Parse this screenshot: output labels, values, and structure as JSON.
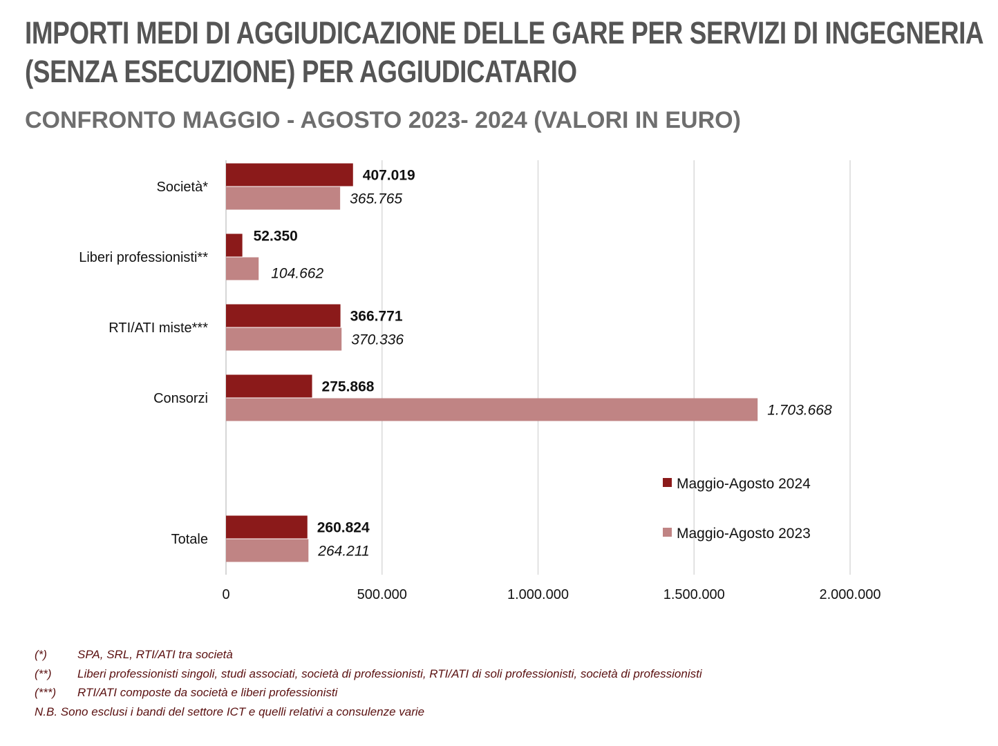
{
  "title_lines": [
    "IMPORTI MEDI DI AGGIUDICAZIONE DELLE GARE PER SERVIZI DI INGEGNERIA",
    "(SENZA ESECUZIONE) PER AGGIUDICATARIO"
  ],
  "subtitle": "CONFRONTO MAGGIO - AGOSTO 2023- 2024 (VALORI IN EURO)",
  "colors": {
    "series_2024": "#8b1a1a",
    "series_2023": "#c08484",
    "grid": "#d9d9d9",
    "text": "#111111"
  },
  "chart_data": {
    "type": "bar",
    "orientation": "horizontal",
    "categories": [
      "Società*",
      "Liberi professionisti**",
      "RTI/ATI miste***",
      "Consorzi",
      "Totale"
    ],
    "series": [
      {
        "name": "Maggio-Agosto 2024",
        "values": [
          407019,
          52350,
          366771,
          275868,
          260824
        ],
        "labels": [
          "407.019",
          "52.350",
          "366.771",
          "275.868",
          "260.824"
        ]
      },
      {
        "name": "Maggio-Agosto 2023",
        "values": [
          365765,
          104662,
          370336,
          1703668,
          264211
        ],
        "labels": [
          "365.765",
          "104.662",
          "370.336",
          "1.703.668",
          "264.211"
        ]
      }
    ],
    "xlim": [
      0,
      2000000
    ],
    "xticks": [
      0,
      500000,
      1000000,
      1500000,
      2000000
    ],
    "xtick_labels": [
      "0",
      "500.000",
      "1.000.000",
      "1.500.000",
      "2.000.000"
    ],
    "grid": true,
    "legend_position": "right"
  },
  "footnotes": [
    {
      "mark": "(*)",
      "text": "SPA, SRL, RTI/ATI tra società"
    },
    {
      "mark": "(**)",
      "text": "Liberi professionisti singoli, studi associati, società di professionisti, RTI/ATI di soli professionisti, società di professionisti"
    },
    {
      "mark": "(***)",
      "text": "RTI/ATI composte da società e liberi professionisti"
    },
    {
      "mark": "",
      "text": "N.B. Sono esclusi i bandi del settore ICT e quelli relativi a consulenze varie"
    }
  ]
}
